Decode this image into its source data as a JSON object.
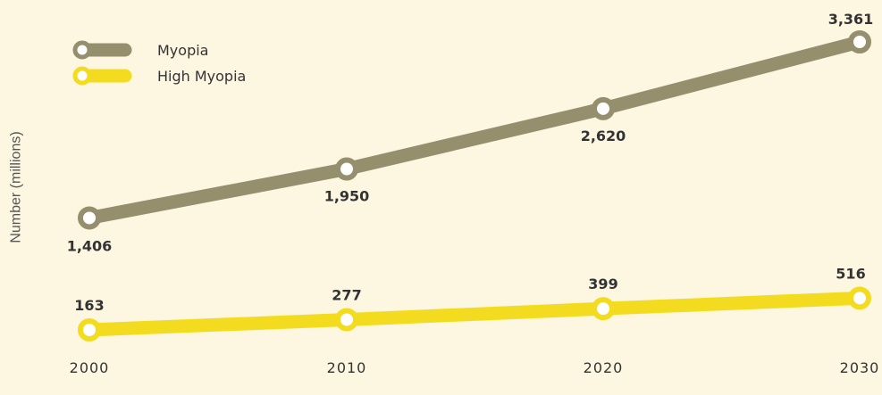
{
  "chart_data": {
    "type": "line",
    "ylabel": "Number (millions)",
    "xlabel": "",
    "title": "",
    "x": [
      "2000",
      "2010",
      "2020",
      "2030"
    ],
    "series": [
      {
        "name": "Myopia",
        "values": [
          1406,
          1950,
          2620,
          3361
        ],
        "labels": [
          "1,406",
          "1,950",
          "2,620",
          "3,361"
        ],
        "color": "#958f6d"
      },
      {
        "name": "High Myopia",
        "values": [
          163,
          277,
          399,
          516
        ],
        "labels": [
          "163",
          "277",
          "399",
          "516"
        ],
        "color": "#f3dc1f"
      }
    ],
    "legend_position": "top-left",
    "grid": false
  },
  "colors": {
    "background": "#fdf7e2",
    "marker_fill": "#ffffff"
  }
}
